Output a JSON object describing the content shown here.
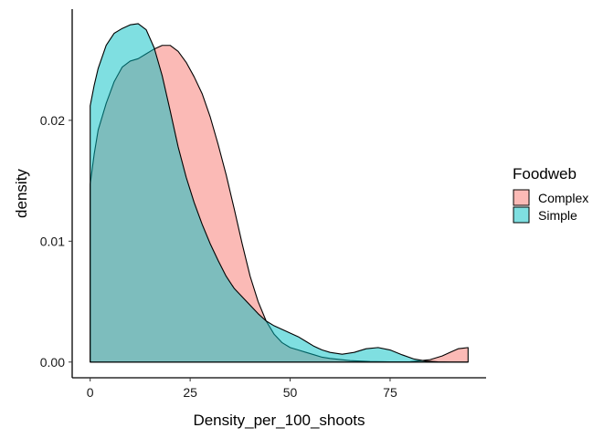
{
  "chart_data": {
    "type": "area",
    "xlabel": "Density_per_100_shoots",
    "ylabel": "density",
    "xlim": [
      -4.5,
      99
    ],
    "ylim": [
      -0.0013,
      0.0292
    ],
    "x_ticks": [
      0,
      25,
      50,
      75
    ],
    "x_tick_labels": [
      "0",
      "25",
      "50",
      "75"
    ],
    "y_ticks": [
      0,
      0.01,
      0.02
    ],
    "y_tick_labels": [
      "0.00",
      "0.01",
      "0.02"
    ],
    "grid": false,
    "legend": {
      "title": "Foodweb",
      "placement": "right"
    },
    "series": [
      {
        "name": "Complex",
        "color": "#F8766D",
        "x": [
          0,
          1,
          2,
          4,
          6,
          8,
          10,
          12,
          14,
          16,
          18,
          20,
          22,
          24,
          26,
          28,
          30,
          32,
          34,
          36,
          38,
          40,
          42,
          44,
          46,
          48,
          50,
          52,
          54,
          56,
          58,
          60,
          65,
          70,
          75,
          80,
          85,
          88,
          90,
          92,
          94.5
        ],
        "y": [
          0.0147,
          0.0172,
          0.0192,
          0.0214,
          0.0232,
          0.0244,
          0.0249,
          0.0251,
          0.0255,
          0.0259,
          0.0262,
          0.0262,
          0.0257,
          0.0248,
          0.0236,
          0.0222,
          0.0203,
          0.018,
          0.0155,
          0.0127,
          0.0098,
          0.0071,
          0.005,
          0.0034,
          0.0023,
          0.0016,
          0.0012,
          0.001,
          0.0008,
          0.0006,
          0.0004,
          0.0003,
          0.00012,
          5e-05,
          2e-05,
          3e-05,
          0.0002,
          0.0005,
          0.0008,
          0.0011,
          0.0012
        ]
      },
      {
        "name": "Simple",
        "color": "#00BFC4",
        "x": [
          0,
          1,
          2,
          4,
          6,
          8,
          10,
          12,
          14,
          16,
          18,
          20,
          22,
          24,
          26,
          28,
          30,
          32,
          34,
          36,
          38,
          40,
          42,
          44,
          46,
          48,
          50,
          52,
          54,
          56,
          58,
          60,
          63,
          66,
          69,
          72,
          75,
          78,
          81,
          84,
          87,
          90,
          92,
          94.5
        ],
        "y": [
          0.0212,
          0.0229,
          0.0243,
          0.0262,
          0.0272,
          0.0276,
          0.0279,
          0.028,
          0.0275,
          0.026,
          0.0237,
          0.0208,
          0.0178,
          0.0153,
          0.0132,
          0.0114,
          0.0098,
          0.0084,
          0.0071,
          0.0061,
          0.0054,
          0.0047,
          0.004,
          0.0034,
          0.003,
          0.0027,
          0.0024,
          0.0021,
          0.0017,
          0.0013,
          0.001,
          0.0008,
          0.00065,
          0.0008,
          0.0011,
          0.0012,
          0.001,
          0.0006,
          0.00025,
          8e-05,
          2e-05,
          0.0,
          0.0,
          0.0
        ]
      }
    ]
  }
}
